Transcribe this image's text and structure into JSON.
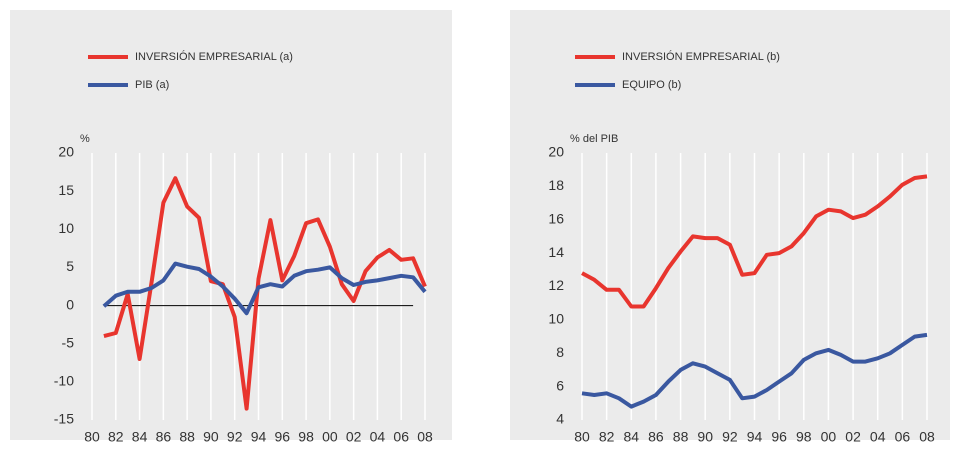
{
  "chart_data": [
    {
      "type": "line",
      "ylabel": "%",
      "x": [
        1981,
        1982,
        1983,
        1984,
        1985,
        1986,
        1987,
        1988,
        1989,
        1990,
        1991,
        1992,
        1993,
        1994,
        1995,
        1996,
        1997,
        1998,
        1999,
        2000,
        2001,
        2002,
        2003,
        2004,
        2005,
        2006,
        2007,
        2008
      ],
      "series": [
        {
          "name": "INVERSIÓN EMPRESARIAL (a)",
          "color": "#e8352e",
          "values": [
            -4,
            -3.6,
            1.5,
            -7,
            3,
            13.5,
            16.7,
            13,
            11.5,
            3.2,
            2.8,
            -1.5,
            -13.5,
            3.5,
            11.2,
            3.3,
            6.5,
            10.8,
            11.3,
            7.7,
            2.8,
            0.6,
            4.5,
            6.3,
            7.3,
            6,
            6.2,
            2.5
          ]
        },
        {
          "name": "PIB (a)",
          "color": "#3a58a0",
          "values": [
            -0.1,
            1.3,
            1.8,
            1.8,
            2.3,
            3.3,
            5.5,
            5.1,
            4.8,
            3.8,
            2.5,
            0.9,
            -1,
            2.4,
            2.8,
            2.5,
            3.9,
            4.5,
            4.7,
            5,
            3.6,
            2.7,
            3.1,
            3.3,
            3.6,
            3.9,
            3.7,
            1.8
          ]
        }
      ],
      "xlim": [
        1980,
        2008
      ],
      "xticks": [
        {
          "value": 1980,
          "label": "80"
        },
        {
          "value": 1982,
          "label": "82"
        },
        {
          "value": 1984,
          "label": "84"
        },
        {
          "value": 1986,
          "label": "86"
        },
        {
          "value": 1988,
          "label": "88"
        },
        {
          "value": 1990,
          "label": "90"
        },
        {
          "value": 1992,
          "label": "92"
        },
        {
          "value": 1994,
          "label": "94"
        },
        {
          "value": 1996,
          "label": "96"
        },
        {
          "value": 1998,
          "label": "98"
        },
        {
          "value": 2000,
          "label": "00"
        },
        {
          "value": 2002,
          "label": "02"
        },
        {
          "value": 2004,
          "label": "04"
        },
        {
          "value": 2006,
          "label": "06"
        },
        {
          "value": 2008,
          "label": "08"
        }
      ],
      "ylim": [
        -15,
        20
      ],
      "yticks": [
        -15,
        -10,
        -5,
        0,
        5,
        10,
        15,
        20
      ],
      "grid": true
    },
    {
      "type": "line",
      "ylabel": "% del PIB",
      "x": [
        1980,
        1981,
        1982,
        1983,
        1984,
        1985,
        1986,
        1987,
        1988,
        1989,
        1990,
        1991,
        1992,
        1993,
        1994,
        1995,
        1996,
        1997,
        1998,
        1999,
        2000,
        2001,
        2002,
        2003,
        2004,
        2005,
        2006,
        2007,
        2008
      ],
      "series": [
        {
          "name": "INVERSIÓN EMPRESARIAL (b)",
          "color": "#e8352e",
          "values": [
            12.8,
            12.4,
            11.8,
            11.8,
            10.8,
            10.8,
            11.9,
            13.1,
            14.1,
            15,
            14.9,
            14.9,
            14.5,
            12.7,
            12.8,
            13.9,
            14,
            14.4,
            15.2,
            16.2,
            16.6,
            16.5,
            16.1,
            16.3,
            16.8,
            17.4,
            18.1,
            18.5,
            18.6
          ]
        },
        {
          "name": "EQUIPO (b)",
          "color": "#3a58a0",
          "values": [
            5.6,
            5.5,
            5.6,
            5.3,
            4.8,
            5.1,
            5.5,
            6.3,
            7,
            7.4,
            7.2,
            6.8,
            6.4,
            5.3,
            5.4,
            5.8,
            6.3,
            6.8,
            7.6,
            8,
            8.2,
            7.9,
            7.5,
            7.5,
            7.7,
            8,
            8.5,
            9,
            9.1
          ]
        }
      ],
      "xlim": [
        1980,
        2008
      ],
      "xticks": [
        {
          "value": 1980,
          "label": "80"
        },
        {
          "value": 1982,
          "label": "82"
        },
        {
          "value": 1984,
          "label": "84"
        },
        {
          "value": 1986,
          "label": "86"
        },
        {
          "value": 1988,
          "label": "88"
        },
        {
          "value": 1990,
          "label": "90"
        },
        {
          "value": 1992,
          "label": "92"
        },
        {
          "value": 1994,
          "label": "94"
        },
        {
          "value": 1996,
          "label": "96"
        },
        {
          "value": 1998,
          "label": "98"
        },
        {
          "value": 2000,
          "label": "00"
        },
        {
          "value": 2002,
          "label": "02"
        },
        {
          "value": 2004,
          "label": "04"
        },
        {
          "value": 2006,
          "label": "06"
        },
        {
          "value": 2008,
          "label": "08"
        }
      ],
      "ylim": [
        4,
        20
      ],
      "yticks": [
        4,
        6,
        8,
        10,
        12,
        14,
        16,
        18,
        20
      ],
      "grid": true
    }
  ]
}
